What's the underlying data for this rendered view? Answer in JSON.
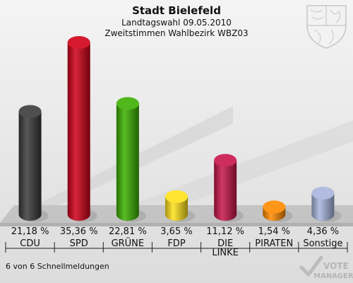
{
  "header": {
    "title": "Stadt Bielefeld",
    "subtitle1": "Landtagswahl 09.05.2010",
    "subtitle2": "Zweitstimmen Wahlbezirk WBZ03"
  },
  "footer": {
    "status": "6 von 6 Schnellmeldungen"
  },
  "logo": {
    "line1": "VOTE",
    "line2": "MANAGER"
  },
  "crest_icon": "nrw-coat-of-arms-icon",
  "chart_data": {
    "type": "bar",
    "title": "Stadt Bielefeld",
    "categories": [
      "CDU",
      "SPD",
      "GRÜNE",
      "FDP",
      "DIE LINKE",
      "PIRATEN",
      "Sonstige"
    ],
    "category_lines": [
      [
        "CDU"
      ],
      [
        "SPD"
      ],
      [
        "GRÜNE"
      ],
      [
        "FDP"
      ],
      [
        "DIE",
        "LINKE"
      ],
      [
        "PIRATEN"
      ],
      [
        "Sonstige"
      ]
    ],
    "values": [
      21.18,
      35.36,
      22.81,
      3.65,
      11.12,
      1.54,
      4.36
    ],
    "value_labels": [
      "21,18 %",
      "35,36 %",
      "22,81 %",
      "3,65 %",
      "11,12 %",
      "1,54 %",
      "4,36 %"
    ],
    "colors": [
      "#3a3a3a",
      "#d00018",
      "#3cb000",
      "#ffe21a",
      "#c8154a",
      "#ff8a00",
      "#a8b5dd"
    ],
    "ylim": [
      0,
      35.36
    ],
    "grid": false,
    "legend": "none"
  }
}
